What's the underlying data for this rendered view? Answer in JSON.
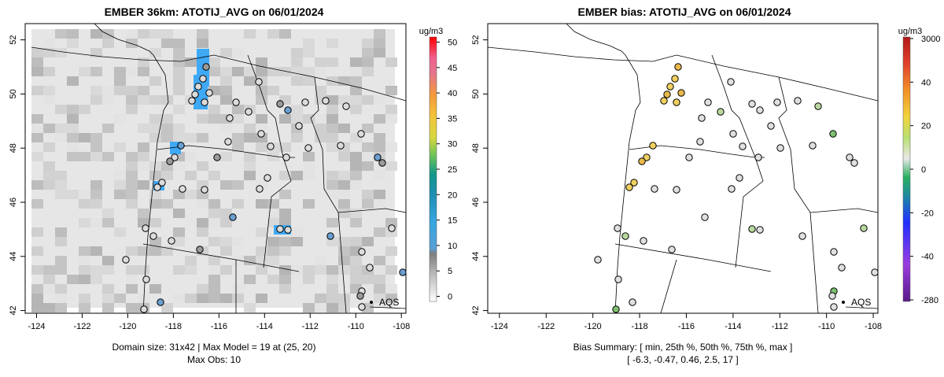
{
  "chart_data": [
    {
      "type": "map",
      "title": "EMBER 36km: ATOTIJ_AVG on 06/01/2024",
      "xlim": [
        -124.5,
        -107.8
      ],
      "ylim": [
        41.9,
        52.6
      ],
      "x_ticks": [
        "-124",
        "-122",
        "-120",
        "-118",
        "-116",
        "-114",
        "-112",
        "-110",
        "-108"
      ],
      "y_ticks": [
        "42",
        "44",
        "46",
        "48",
        "50",
        "52"
      ],
      "caption_line1": "Domain size: 31x42 | Max Model = 19 at (25, 20)",
      "caption_line2": "Max Obs: 10",
      "legend_label": "AQS",
      "colorbar": {
        "unit": "ug/m3",
        "ticks": [
          "0",
          "5",
          "10",
          "15",
          "20",
          "25",
          "30",
          "35",
          "40",
          "45",
          "50"
        ],
        "range": [
          -1,
          51
        ]
      }
    },
    {
      "type": "map",
      "title": "EMBER bias: ATOTIJ_AVG on 06/01/2024",
      "xlim": [
        -124.5,
        -107.8
      ],
      "ylim": [
        41.9,
        52.6
      ],
      "x_ticks": [
        "-124",
        "-122",
        "-120",
        "-118",
        "-116",
        "-114",
        "-112",
        "-110",
        "-108"
      ],
      "y_ticks": [
        "42",
        "44",
        "46",
        "48",
        "50",
        "52"
      ],
      "caption_line1": "Bias Summary: [ min, 25th %, 50th %, 75th %, max ]",
      "caption_line2": "[ -6.3,   -0.47,   0.46,   2.5,   17 ]",
      "legend_label": "AQS",
      "colorbar": {
        "unit": "ug/m3",
        "ticks": [
          "3000",
          "40",
          "20",
          "0",
          "-20",
          "-40",
          "-280"
        ]
      }
    }
  ],
  "colors": {
    "grey_low": "#ececec",
    "grey_mid": "#bfbfbf",
    "blue": "#3fa9f5",
    "bias_neutral": "#e0e0e0",
    "bias_yellow": "#f0d060"
  }
}
